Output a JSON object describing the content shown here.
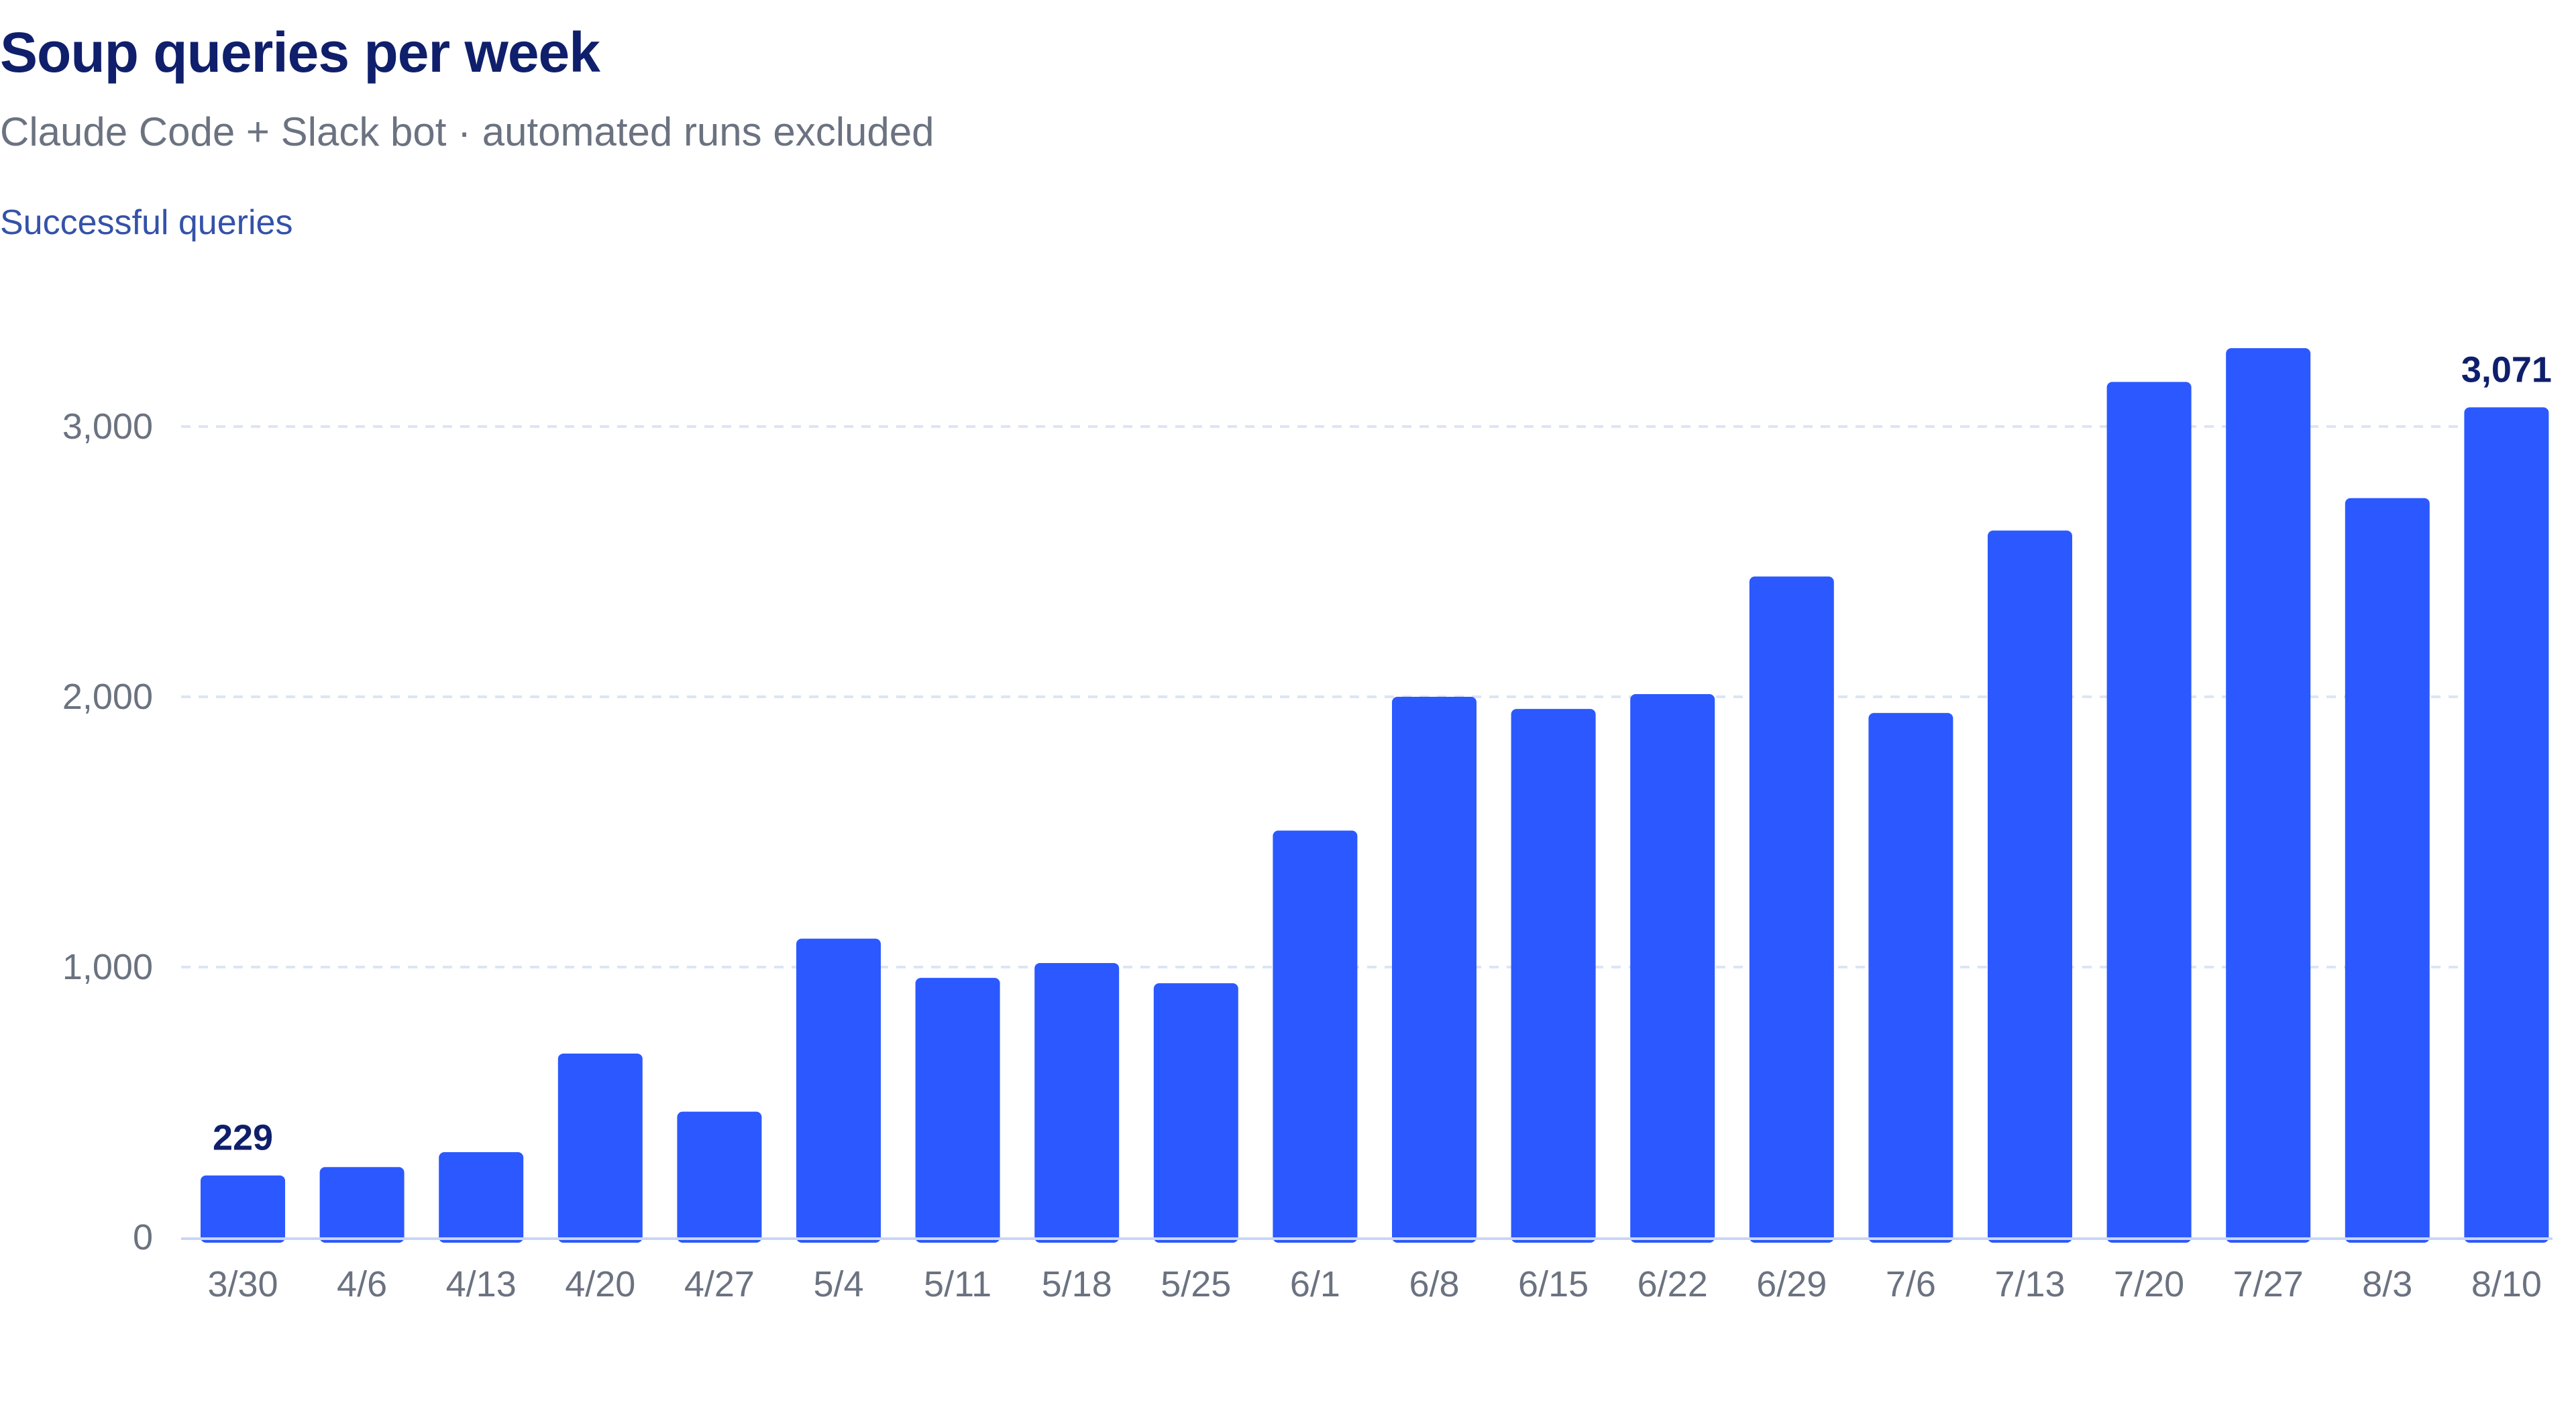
{
  "header": {
    "title": "Soup queries per week",
    "subtitle": "Claude Code + Slack bot · automated runs excluded",
    "series_label": "Successful queries"
  },
  "colors": {
    "bar": "#2b59ff",
    "grid": "#dde4f5",
    "baseline": "#c9d5f5",
    "title": "#0f1f6b"
  },
  "chart_data": {
    "type": "bar",
    "title": "Soup queries per week",
    "subtitle": "Claude Code + Slack bot · automated runs excluded",
    "xlabel": "",
    "ylabel": "",
    "categories": [
      "3/30",
      "4/6",
      "4/13",
      "4/20",
      "4/27",
      "5/4",
      "5/11",
      "5/18",
      "5/25",
      "6/1",
      "6/8",
      "6/15",
      "6/22",
      "6/29",
      "7/6",
      "7/13",
      "7/20",
      "7/27",
      "8/3",
      "8/10"
    ],
    "series": [
      {
        "name": "Successful queries",
        "values": [
          229,
          260,
          315,
          680,
          465,
          1105,
          960,
          1015,
          940,
          1505,
          2000,
          1955,
          2010,
          2445,
          1940,
          2615,
          3165,
          3290,
          2735,
          3071
        ]
      }
    ],
    "ylim": [
      0,
      3300
    ],
    "yticks": [
      0,
      1000,
      2000,
      3000
    ],
    "ytick_labels": [
      "0",
      "1,000",
      "2,000",
      "3,000"
    ],
    "grid": true,
    "data_labels": [
      {
        "index": 0,
        "text": "229"
      },
      {
        "index": 19,
        "text": "3,071"
      }
    ]
  }
}
